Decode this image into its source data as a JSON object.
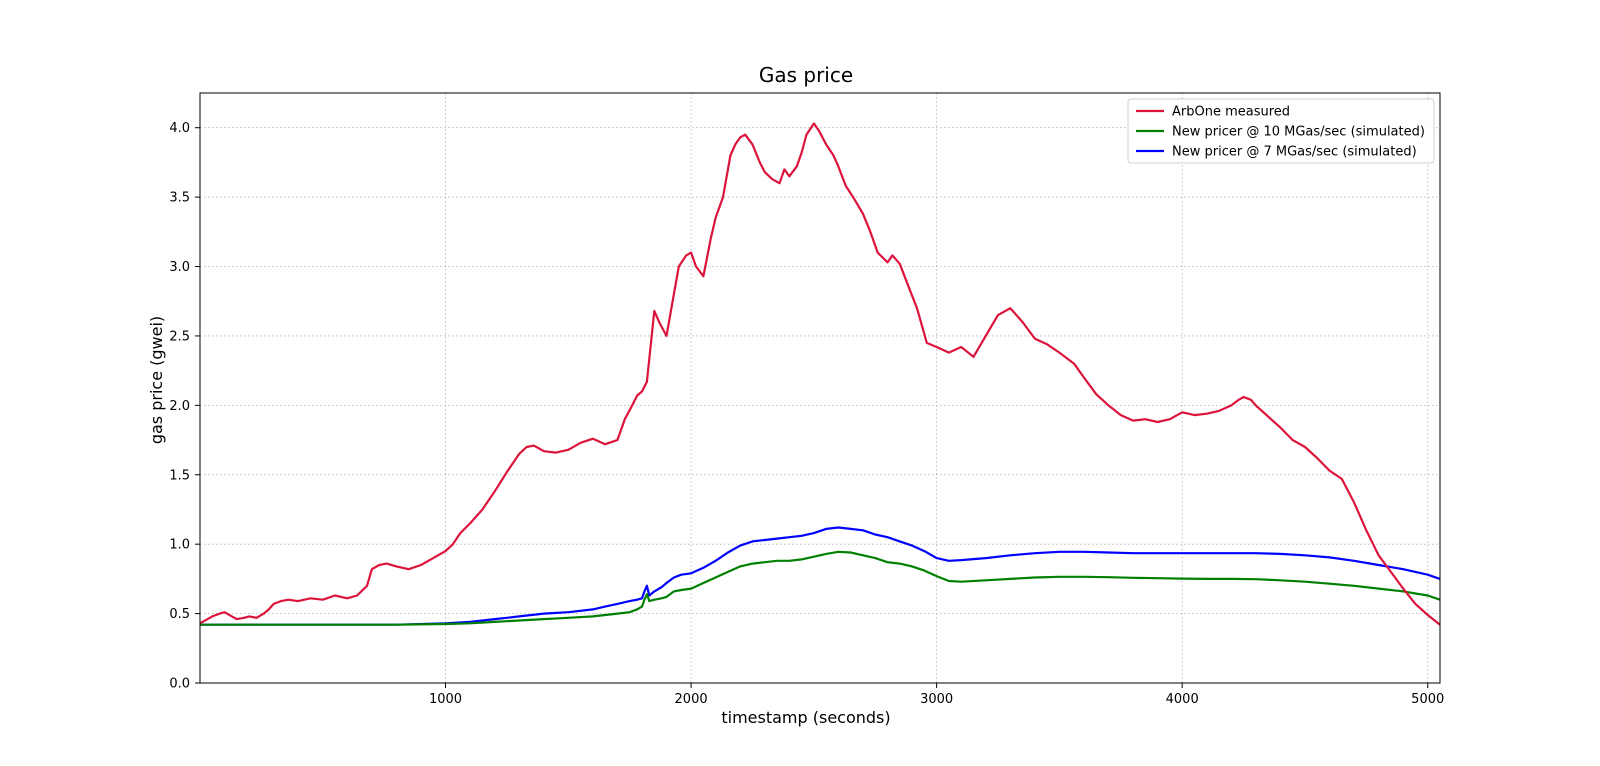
{
  "chart_data": {
    "type": "line",
    "title": "Gas price",
    "xlabel": "timestamp (seconds)",
    "ylabel": "gas price (gwei)",
    "xlim": [
      0,
      5050
    ],
    "ylim": [
      0,
      4.25
    ],
    "xticks": [
      1000,
      2000,
      3000,
      4000,
      5000
    ],
    "yticks": [
      0.0,
      0.5,
      1.0,
      1.5,
      2.0,
      2.5,
      3.0,
      3.5,
      4.0
    ],
    "xtick_labels": [
      "1000",
      "2000",
      "3000",
      "4000",
      "5000"
    ],
    "ytick_labels": [
      "0.0",
      "0.5",
      "1.0",
      "1.5",
      "2.0",
      "2.5",
      "3.0",
      "3.5",
      "4.0"
    ],
    "grid": true,
    "legend_position": "top-right",
    "series": [
      {
        "name": "ArbOne measured",
        "color": "#dc143c",
        "x": [
          0,
          50,
          80,
          100,
          130,
          150,
          180,
          200,
          230,
          260,
          280,
          300,
          330,
          360,
          400,
          450,
          500,
          550,
          600,
          640,
          680,
          700,
          730,
          760,
          800,
          850,
          900,
          950,
          1000,
          1030,
          1060,
          1100,
          1150,
          1200,
          1250,
          1300,
          1330,
          1360,
          1400,
          1450,
          1500,
          1550,
          1600,
          1650,
          1700,
          1730,
          1760,
          1780,
          1800,
          1820,
          1850,
          1870,
          1900,
          1920,
          1950,
          1980,
          2000,
          2020,
          2050,
          2080,
          2100,
          2130,
          2160,
          2180,
          2200,
          2220,
          2250,
          2280,
          2300,
          2330,
          2360,
          2380,
          2400,
          2430,
          2450,
          2470,
          2500,
          2520,
          2550,
          2580,
          2600,
          2630,
          2660,
          2700,
          2730,
          2760,
          2800,
          2820,
          2850,
          2880,
          2920,
          2960,
          3000,
          3050,
          3100,
          3150,
          3200,
          3250,
          3300,
          3350,
          3400,
          3450,
          3500,
          3560,
          3600,
          3650,
          3700,
          3750,
          3800,
          3850,
          3900,
          3950,
          4000,
          4050,
          4100,
          4150,
          4200,
          4230,
          4250,
          4280,
          4300,
          4350,
          4400,
          4450,
          4500,
          4550,
          4600,
          4650,
          4700,
          4750,
          4800,
          4850,
          4900,
          4950,
          5000,
          5050
        ],
        "y": [
          0.43,
          0.48,
          0.5,
          0.51,
          0.48,
          0.46,
          0.47,
          0.48,
          0.47,
          0.5,
          0.53,
          0.57,
          0.59,
          0.6,
          0.59,
          0.61,
          0.6,
          0.63,
          0.61,
          0.63,
          0.7,
          0.82,
          0.85,
          0.86,
          0.84,
          0.82,
          0.85,
          0.9,
          0.95,
          1.0,
          1.08,
          1.15,
          1.25,
          1.38,
          1.52,
          1.65,
          1.7,
          1.71,
          1.67,
          1.66,
          1.68,
          1.73,
          1.76,
          1.72,
          1.75,
          1.9,
          2.0,
          2.07,
          2.1,
          2.17,
          2.68,
          2.6,
          2.5,
          2.7,
          3.0,
          3.08,
          3.1,
          3.0,
          2.93,
          3.2,
          3.35,
          3.5,
          3.8,
          3.88,
          3.93,
          3.95,
          3.88,
          3.75,
          3.68,
          3.63,
          3.6,
          3.7,
          3.65,
          3.72,
          3.82,
          3.95,
          4.03,
          3.98,
          3.88,
          3.8,
          3.72,
          3.58,
          3.5,
          3.38,
          3.25,
          3.1,
          3.03,
          3.08,
          3.02,
          2.88,
          2.7,
          2.45,
          2.42,
          2.38,
          2.42,
          2.35,
          2.5,
          2.65,
          2.7,
          2.6,
          2.48,
          2.44,
          2.38,
          2.3,
          2.2,
          2.08,
          2.0,
          1.93,
          1.89,
          1.9,
          1.88,
          1.9,
          1.95,
          1.93,
          1.94,
          1.96,
          2.0,
          2.04,
          2.06,
          2.04,
          2.0,
          1.92,
          1.84,
          1.75,
          1.7,
          1.62,
          1.53,
          1.47,
          1.3,
          1.1,
          0.92,
          0.8,
          0.68,
          0.57,
          0.49,
          0.42
        ]
      },
      {
        "name": "New pricer @ 10 MGas/sec (simulated)",
        "color": "#008000",
        "x": [
          0,
          200,
          400,
          600,
          800,
          1000,
          1100,
          1200,
          1300,
          1400,
          1500,
          1600,
          1650,
          1700,
          1750,
          1780,
          1800,
          1810,
          1820,
          1830,
          1850,
          1880,
          1900,
          1930,
          1960,
          2000,
          2050,
          2100,
          2150,
          2200,
          2250,
          2300,
          2350,
          2400,
          2450,
          2500,
          2550,
          2600,
          2650,
          2700,
          2750,
          2800,
          2850,
          2900,
          2950,
          3000,
          3050,
          3100,
          3200,
          3300,
          3400,
          3500,
          3600,
          3700,
          3800,
          3900,
          4000,
          4100,
          4200,
          4300,
          4400,
          4500,
          4600,
          4700,
          4800,
          4900,
          5000,
          5050
        ],
        "y": [
          0.42,
          0.42,
          0.42,
          0.42,
          0.42,
          0.425,
          0.43,
          0.44,
          0.45,
          0.46,
          0.47,
          0.48,
          0.49,
          0.5,
          0.51,
          0.53,
          0.55,
          0.6,
          0.64,
          0.59,
          0.6,
          0.61,
          0.62,
          0.66,
          0.67,
          0.68,
          0.72,
          0.76,
          0.8,
          0.84,
          0.86,
          0.87,
          0.88,
          0.88,
          0.89,
          0.91,
          0.93,
          0.945,
          0.94,
          0.92,
          0.9,
          0.87,
          0.86,
          0.84,
          0.81,
          0.77,
          0.735,
          0.73,
          0.74,
          0.75,
          0.76,
          0.765,
          0.765,
          0.762,
          0.758,
          0.755,
          0.752,
          0.75,
          0.75,
          0.748,
          0.74,
          0.73,
          0.715,
          0.7,
          0.68,
          0.66,
          0.63,
          0.6
        ]
      },
      {
        "name": "New pricer @ 7 MGas/sec (simulated)",
        "color": "#0000ff",
        "x": [
          0,
          200,
          400,
          600,
          800,
          1000,
          1100,
          1200,
          1250,
          1300,
          1350,
          1400,
          1500,
          1600,
          1650,
          1700,
          1750,
          1780,
          1800,
          1810,
          1820,
          1830,
          1850,
          1880,
          1900,
          1930,
          1960,
          2000,
          2050,
          2100,
          2150,
          2200,
          2250,
          2300,
          2350,
          2400,
          2450,
          2500,
          2550,
          2600,
          2650,
          2700,
          2750,
          2800,
          2850,
          2900,
          2950,
          3000,
          3050,
          3100,
          3200,
          3300,
          3400,
          3500,
          3600,
          3700,
          3800,
          3900,
          4000,
          4100,
          4200,
          4300,
          4400,
          4500,
          4600,
          4700,
          4800,
          4900,
          5000,
          5050
        ],
        "y": [
          0.42,
          0.42,
          0.42,
          0.42,
          0.42,
          0.43,
          0.44,
          0.46,
          0.47,
          0.48,
          0.49,
          0.5,
          0.51,
          0.53,
          0.55,
          0.57,
          0.59,
          0.6,
          0.61,
          0.66,
          0.7,
          0.63,
          0.66,
          0.69,
          0.72,
          0.76,
          0.78,
          0.79,
          0.83,
          0.88,
          0.94,
          0.99,
          1.02,
          1.03,
          1.04,
          1.05,
          1.06,
          1.08,
          1.11,
          1.12,
          1.11,
          1.1,
          1.07,
          1.05,
          1.02,
          0.99,
          0.95,
          0.9,
          0.88,
          0.885,
          0.9,
          0.92,
          0.935,
          0.945,
          0.945,
          0.94,
          0.935,
          0.935,
          0.935,
          0.935,
          0.935,
          0.935,
          0.93,
          0.92,
          0.905,
          0.88,
          0.85,
          0.82,
          0.78,
          0.75
        ]
      }
    ]
  }
}
